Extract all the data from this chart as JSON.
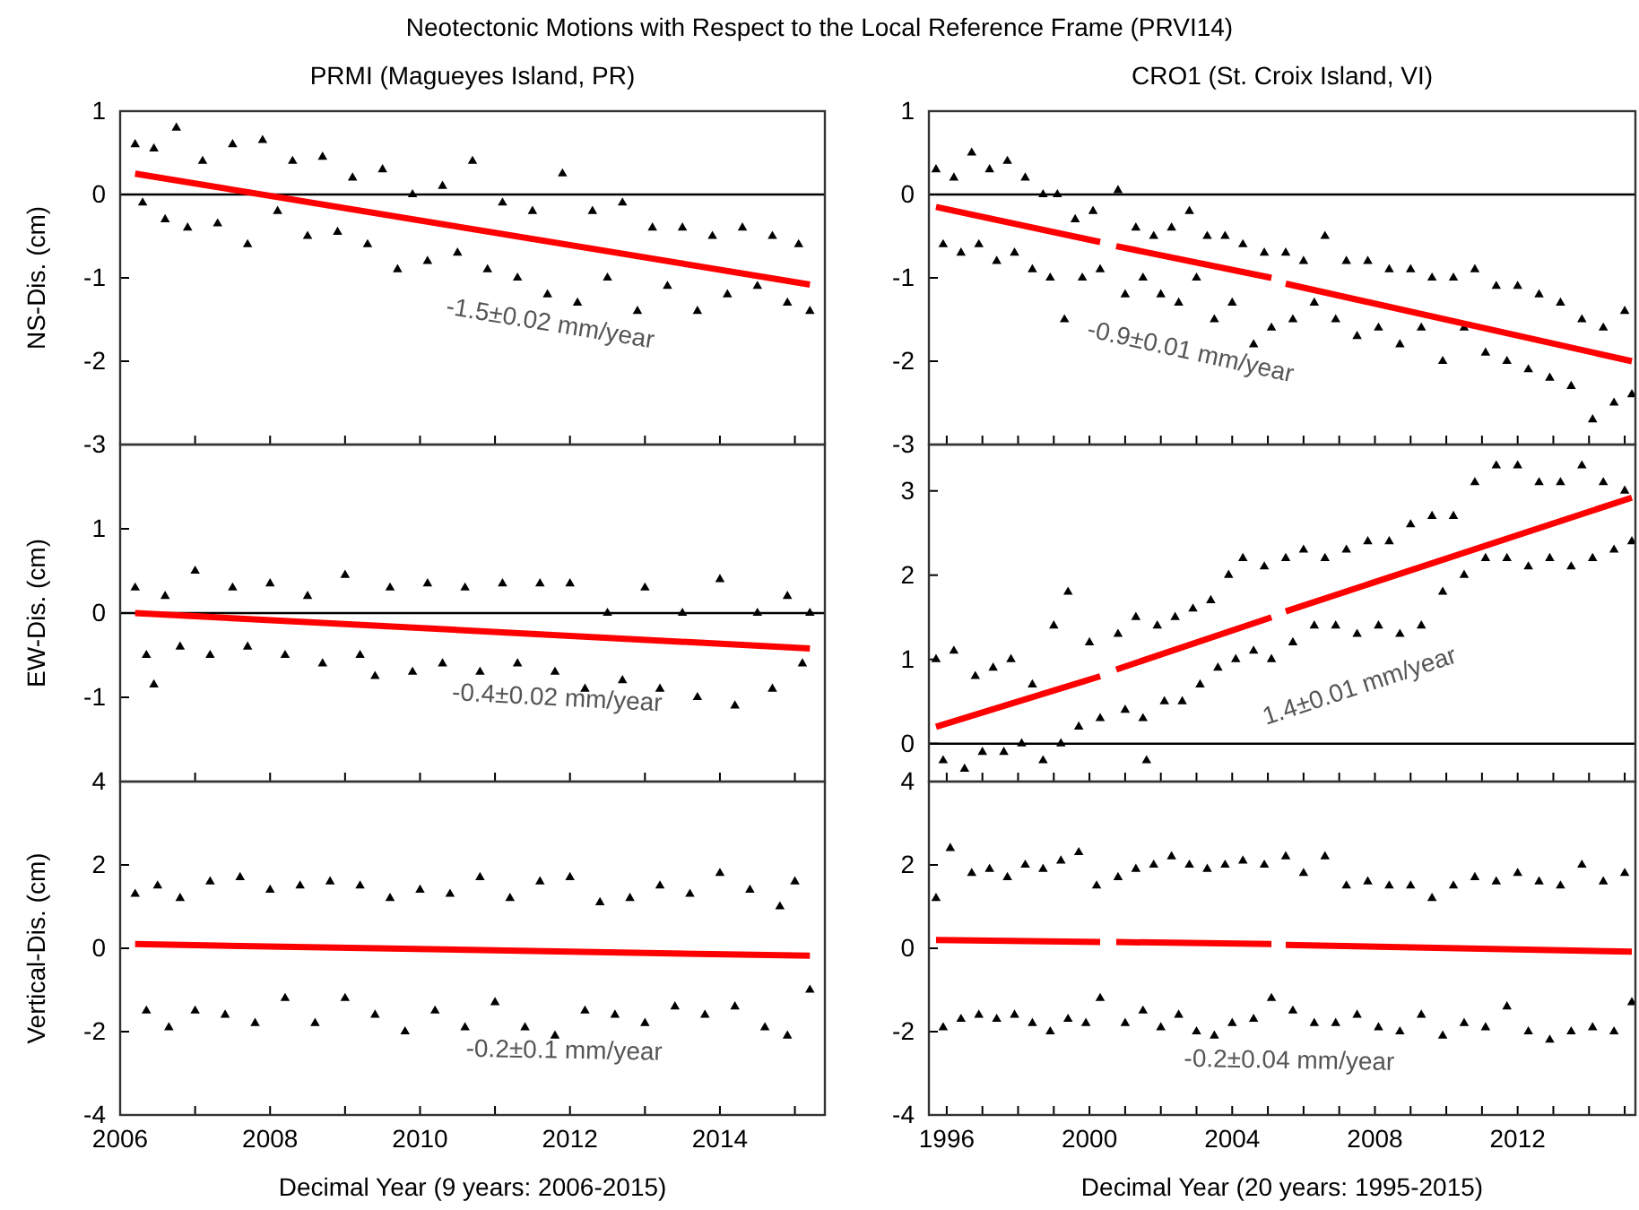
{
  "chart_data": [
    {
      "type": "scatter",
      "title": "Neotectonic Motions with Respect to the Local Reference Frame (PRVI14)",
      "subtitle": "PRMI (Magueyes Island, PR)",
      "ylabel": "NS-Dis. (cm)",
      "xlim": [
        2006,
        2015.4
      ],
      "xticks": [
        2006,
        {
          "value": 2007,
          "label": null
        },
        2008,
        {
          "value": 2009,
          "label": null
        },
        2010,
        {
          "value": 2011,
          "label": null
        },
        2012,
        {
          "value": 2013,
          "label": null
        },
        2014,
        {
          "value": 2015,
          "label": null
        }
      ],
      "ylim": [
        -3,
        1
      ],
      "yticks": [
        -3,
        -2,
        -1,
        0,
        1
      ],
      "tick_labels": "y",
      "marker": "triangle",
      "grid": false,
      "ref_lines": [
        {
          "axis": "y",
          "value": 0,
          "color": "#000000"
        }
      ],
      "annotations": [
        "-1.5±0.02 mm/year"
      ],
      "series": [
        {
          "type": "scatter",
          "color": "#000000",
          "x": [
            2006.2,
            2006.3,
            2006.45,
            2006.6,
            2006.75,
            2006.9,
            2007.1,
            2007.3,
            2007.5,
            2007.7,
            2007.9,
            2008.1,
            2008.3,
            2008.5,
            2008.7,
            2008.9,
            2009.1,
            2009.3,
            2009.5,
            2009.7,
            2009.9,
            2010.1,
            2010.3,
            2010.5,
            2010.7,
            2010.9,
            2011.1,
            2011.3,
            2011.5,
            2011.7,
            2011.9,
            2012.1,
            2012.3,
            2012.5,
            2012.7,
            2012.9,
            2013.1,
            2013.3,
            2013.5,
            2013.7,
            2013.9,
            2014.1,
            2014.3,
            2014.5,
            2014.7,
            2014.9,
            2015.05,
            2015.2
          ],
          "values": [
            0.6,
            -0.1,
            0.55,
            -0.3,
            0.8,
            -0.4,
            0.4,
            -0.35,
            0.6,
            -0.6,
            0.65,
            -0.2,
            0.4,
            -0.5,
            0.45,
            -0.45,
            0.2,
            -0.6,
            0.3,
            -0.9,
            0.0,
            -0.8,
            0.1,
            -0.7,
            0.4,
            -0.9,
            -0.1,
            -1.0,
            -0.2,
            -1.2,
            0.25,
            -1.3,
            -0.2,
            -1.0,
            -0.1,
            -1.4,
            -0.4,
            -1.1,
            -0.4,
            -1.4,
            -0.5,
            -1.2,
            -0.4,
            -1.1,
            -0.5,
            -1.3,
            -0.6,
            -1.4
          ]
        },
        {
          "type": "line",
          "marker": "none",
          "color": "#ff0000",
          "x": [
            2006.2,
            2015.2
          ],
          "values": [
            0.25,
            -1.08
          ]
        }
      ]
    },
    {
      "type": "scatter",
      "subtitle": "CRO1 (St. Croix Island, VI)",
      "xlim": [
        1995.5,
        2015.3
      ],
      "xticks": [
        1996,
        {
          "value": 1997,
          "label": null
        },
        {
          "value": 1998,
          "label": null
        },
        {
          "value": 1999,
          "label": null
        },
        2000,
        {
          "value": 2001,
          "label": null
        },
        {
          "value": 2002,
          "label": null
        },
        {
          "value": 2003,
          "label": null
        },
        2004,
        {
          "value": 2005,
          "label": null
        },
        {
          "value": 2006,
          "label": null
        },
        {
          "value": 2007,
          "label": null
        },
        2008,
        {
          "value": 2009,
          "label": null
        },
        {
          "value": 2010,
          "label": null
        },
        {
          "value": 2011,
          "label": null
        },
        2012,
        {
          "value": 2013,
          "label": null
        },
        {
          "value": 2014,
          "label": null
        },
        {
          "value": 2015,
          "label": null
        }
      ],
      "ylim": [
        -3,
        1
      ],
      "yticks": [
        -3,
        -2,
        -1,
        0,
        1
      ],
      "tick_labels": "y",
      "marker": "triangle",
      "grid": false,
      "ref_lines": [
        {
          "axis": "y",
          "value": 0,
          "color": "#000000"
        }
      ],
      "annotations": [
        "-0.9±0.01 mm/year"
      ],
      "series": [
        {
          "type": "scatter",
          "color": "#000000",
          "x": [
            1995.7,
            1995.9,
            1996.2,
            1996.4,
            1996.7,
            1996.9,
            1997.2,
            1997.4,
            1997.7,
            1997.9,
            1998.2,
            1998.4,
            1998.7,
            1998.9,
            1999.1,
            1999.3,
            1999.6,
            1999.8,
            2000.1,
            2000.3,
            2000.8,
            2001.0,
            2001.3,
            2001.5,
            2001.8,
            2002.0,
            2002.3,
            2002.5,
            2002.8,
            2003.0,
            2003.3,
            2003.5,
            2003.8,
            2004.0,
            2004.3,
            2004.6,
            2004.9,
            2005.1,
            2005.5,
            2005.7,
            2006.0,
            2006.3,
            2006.6,
            2006.9,
            2007.2,
            2007.5,
            2007.8,
            2008.1,
            2008.4,
            2008.7,
            2009.0,
            2009.3,
            2009.6,
            2009.9,
            2010.2,
            2010.5,
            2010.8,
            2011.1,
            2011.4,
            2011.7,
            2012.0,
            2012.3,
            2012.6,
            2012.9,
            2013.2,
            2013.5,
            2013.8,
            2014.1,
            2014.4,
            2014.7,
            2015.0,
            2015.2
          ],
          "values": [
            0.3,
            -0.6,
            0.2,
            -0.7,
            0.5,
            -0.6,
            0.3,
            -0.8,
            0.4,
            -0.7,
            0.2,
            -0.9,
            0.0,
            -1.0,
            0.0,
            -1.5,
            -0.3,
            -1.0,
            -0.2,
            -0.9,
            0.05,
            -1.2,
            -0.4,
            -1.0,
            -0.5,
            -1.2,
            -0.4,
            -1.3,
            -0.2,
            -1.0,
            -0.5,
            -1.5,
            -0.5,
            -1.3,
            -0.6,
            -1.8,
            -0.7,
            -1.6,
            -0.7,
            -1.5,
            -0.8,
            -1.3,
            -0.5,
            -1.5,
            -0.8,
            -1.7,
            -0.8,
            -1.6,
            -0.9,
            -1.8,
            -0.9,
            -1.6,
            -1.0,
            -2.0,
            -1.0,
            -1.6,
            -0.9,
            -1.9,
            -1.1,
            -2.0,
            -1.1,
            -2.1,
            -1.2,
            -2.2,
            -1.3,
            -2.3,
            -1.5,
            -2.7,
            -1.6,
            -2.5,
            -1.4,
            -2.4
          ]
        },
        {
          "type": "line",
          "marker": "none",
          "color": "#ff0000",
          "x": [
            1995.7,
            2000.3,
            2000.5,
            2000.75,
            2005.1,
            2005.3,
            2005.5,
            2015.2
          ],
          "values": [
            -0.15,
            -0.57,
            null,
            -0.62,
            -1.0,
            null,
            -1.07,
            -2.0
          ]
        }
      ]
    },
    {
      "type": "scatter",
      "ylabel": "EW-Dis. (cm)",
      "xlim": [
        2006,
        2015.4
      ],
      "xticks": [
        2006,
        {
          "value": 2007,
          "label": null
        },
        2008,
        {
          "value": 2009,
          "label": null
        },
        2010,
        {
          "value": 2011,
          "label": null
        },
        2012,
        {
          "value": 2013,
          "label": null
        },
        2014,
        {
          "value": 2015,
          "label": null
        }
      ],
      "ylim": [
        -2,
        2
      ],
      "yticks": [
        -1,
        0,
        1
      ],
      "tick_labels": "y",
      "marker": "triangle",
      "grid": false,
      "ref_lines": [
        {
          "axis": "y",
          "value": 0,
          "color": "#000000"
        }
      ],
      "annotations": [
        "-0.4±0.02 mm/year"
      ],
      "series": [
        {
          "type": "scatter",
          "color": "#000000",
          "x": [
            2006.2,
            2006.35,
            2006.45,
            2006.6,
            2006.8,
            2007.0,
            2007.2,
            2007.5,
            2007.7,
            2008.0,
            2008.2,
            2008.5,
            2008.7,
            2009.0,
            2009.2,
            2009.4,
            2009.6,
            2009.9,
            2010.1,
            2010.3,
            2010.6,
            2010.8,
            2011.1,
            2011.3,
            2011.6,
            2011.8,
            2012.0,
            2012.2,
            2012.5,
            2012.7,
            2013.0,
            2013.2,
            2013.5,
            2013.7,
            2014.0,
            2014.2,
            2014.5,
            2014.7,
            2014.9,
            2015.1,
            2015.2
          ],
          "values": [
            0.3,
            -0.5,
            -0.85,
            0.2,
            -0.4,
            0.5,
            -0.5,
            0.3,
            -0.4,
            0.35,
            -0.5,
            0.2,
            -0.6,
            0.45,
            -0.5,
            -0.75,
            0.3,
            -0.7,
            0.35,
            -0.6,
            0.3,
            -0.7,
            0.35,
            -0.6,
            0.35,
            -0.7,
            0.35,
            -0.9,
            0.0,
            -0.8,
            0.3,
            -0.9,
            0.0,
            -1.0,
            0.4,
            -1.1,
            0.0,
            -0.9,
            0.2,
            -0.6,
            0.0
          ]
        },
        {
          "type": "line",
          "marker": "none",
          "color": "#ff0000",
          "x": [
            2006.2,
            2015.2
          ],
          "values": [
            0.0,
            -0.42
          ]
        }
      ]
    },
    {
      "type": "scatter",
      "xlim": [
        1995.5,
        2015.3
      ],
      "xticks": [
        1996,
        {
          "value": 1997,
          "label": null
        },
        {
          "value": 1998,
          "label": null
        },
        {
          "value": 1999,
          "label": null
        },
        2000,
        {
          "value": 2001,
          "label": null
        },
        {
          "value": 2002,
          "label": null
        },
        {
          "value": 2003,
          "label": null
        },
        2004,
        {
          "value": 2005,
          "label": null
        },
        {
          "value": 2006,
          "label": null
        },
        {
          "value": 2007,
          "label": null
        },
        2008,
        {
          "value": 2009,
          "label": null
        },
        {
          "value": 2010,
          "label": null
        },
        {
          "value": 2011,
          "label": null
        },
        2012,
        {
          "value": 2013,
          "label": null
        },
        {
          "value": 2014,
          "label": null
        },
        {
          "value": 2015,
          "label": null
        }
      ],
      "ylim": [
        -0.45,
        3.55
      ],
      "yticks": [
        0,
        1,
        2,
        3
      ],
      "tick_labels": "y",
      "marker": "triangle",
      "grid": false,
      "ref_lines": [
        {
          "axis": "y",
          "value": 0,
          "color": "#000000"
        }
      ],
      "annotations": [
        "1.4±0.01 mm/year"
      ],
      "series": [
        {
          "type": "scatter",
          "color": "#000000",
          "x": [
            1995.7,
            1995.9,
            1996.2,
            1996.5,
            1996.8,
            1997.0,
            1997.3,
            1997.6,
            1997.8,
            1998.1,
            1998.4,
            1998.7,
            1999.0,
            1999.2,
            1999.4,
            1999.7,
            2000.0,
            2000.3,
            2000.8,
            2001.0,
            2001.3,
            2001.5,
            2001.6,
            2001.9,
            2002.1,
            2002.4,
            2002.6,
            2002.9,
            2003.1,
            2003.4,
            2003.6,
            2003.9,
            2004.1,
            2004.3,
            2004.6,
            2004.9,
            2005.1,
            2005.5,
            2005.7,
            2006.0,
            2006.3,
            2006.6,
            2006.9,
            2007.2,
            2007.5,
            2007.8,
            2008.1,
            2008.4,
            2008.7,
            2009.0,
            2009.3,
            2009.6,
            2009.9,
            2010.2,
            2010.5,
            2010.8,
            2011.1,
            2011.4,
            2011.7,
            2012.0,
            2012.3,
            2012.6,
            2012.9,
            2013.2,
            2013.5,
            2013.8,
            2014.1,
            2014.4,
            2014.7,
            2015.0,
            2015.2
          ],
          "values": [
            1.0,
            -0.2,
            1.1,
            -0.3,
            0.8,
            -0.1,
            0.9,
            -0.1,
            1.0,
            0.0,
            0.7,
            -0.2,
            1.4,
            0.0,
            1.8,
            0.2,
            1.2,
            0.3,
            1.3,
            0.4,
            1.5,
            0.3,
            -0.2,
            1.4,
            0.5,
            1.5,
            0.5,
            1.6,
            0.7,
            1.7,
            0.9,
            2.0,
            1.0,
            2.2,
            1.1,
            2.1,
            1.0,
            2.2,
            1.2,
            2.3,
            1.4,
            2.2,
            1.4,
            2.3,
            1.3,
            2.4,
            1.4,
            2.4,
            1.3,
            2.6,
            1.4,
            2.7,
            1.8,
            2.7,
            2.0,
            3.1,
            2.2,
            3.3,
            2.2,
            3.3,
            2.1,
            3.1,
            2.2,
            3.1,
            2.1,
            3.3,
            2.2,
            3.1,
            2.3,
            3.0,
            2.4
          ]
        },
        {
          "type": "line",
          "marker": "none",
          "color": "#ff0000",
          "x": [
            1995.7,
            2000.3,
            2000.5,
            2000.75,
            2005.1,
            2005.3,
            2005.5,
            2015.2
          ],
          "values": [
            0.2,
            0.8,
            null,
            0.88,
            1.5,
            null,
            1.57,
            2.92
          ]
        }
      ]
    },
    {
      "type": "scatter",
      "ylabel": "Vertical-Dis. (cm)",
      "xlabel": "Decimal Year (9 years: 2006-2015)",
      "xlim": [
        2006,
        2015.4
      ],
      "xticks": [
        2006,
        {
          "value": 2007,
          "label": null
        },
        2008,
        {
          "value": 2009,
          "label": null
        },
        2010,
        {
          "value": 2011,
          "label": null
        },
        2012,
        {
          "value": 2013,
          "label": null
        },
        2014,
        {
          "value": 2015,
          "label": null
        }
      ],
      "ylim": [
        -4,
        4
      ],
      "yticks": [
        -4,
        -2,
        0,
        2,
        4
      ],
      "marker": "triangle",
      "grid": false,
      "annotations": [
        "-0.2±0.1 mm/year"
      ],
      "series": [
        {
          "type": "scatter",
          "color": "#000000",
          "x": [
            2006.2,
            2006.35,
            2006.5,
            2006.65,
            2006.8,
            2007.0,
            2007.2,
            2007.4,
            2007.6,
            2007.8,
            2008.0,
            2008.2,
            2008.4,
            2008.6,
            2008.8,
            2009.0,
            2009.2,
            2009.4,
            2009.6,
            2009.8,
            2010.0,
            2010.2,
            2010.4,
            2010.6,
            2010.8,
            2011.0,
            2011.2,
            2011.4,
            2011.6,
            2011.8,
            2012.0,
            2012.2,
            2012.4,
            2012.6,
            2012.8,
            2013.0,
            2013.2,
            2013.4,
            2013.6,
            2013.8,
            2014.0,
            2014.2,
            2014.4,
            2014.6,
            2014.8,
            2014.9,
            2015.0,
            2015.2
          ],
          "values": [
            1.3,
            -1.5,
            1.5,
            -1.9,
            1.2,
            -1.5,
            1.6,
            -1.6,
            1.7,
            -1.8,
            1.4,
            -1.2,
            1.5,
            -1.8,
            1.6,
            -1.2,
            1.5,
            -1.6,
            1.2,
            -2.0,
            1.4,
            -1.5,
            1.3,
            -1.9,
            1.7,
            -1.3,
            1.2,
            -1.9,
            1.6,
            -2.1,
            1.7,
            -1.5,
            1.1,
            -1.6,
            1.2,
            -1.8,
            1.5,
            -1.4,
            1.3,
            -1.6,
            1.8,
            -1.4,
            1.4,
            -1.9,
            1.0,
            -2.1,
            1.6,
            -1.0
          ]
        },
        {
          "type": "line",
          "marker": "none",
          "color": "#ff0000",
          "x": [
            2006.2,
            2015.2
          ],
          "values": [
            0.1,
            -0.18
          ]
        }
      ]
    },
    {
      "type": "scatter",
      "xlabel": "Decimal Year (20 years: 1995-2015)",
      "xlim": [
        1995.5,
        2015.3
      ],
      "xticks": [
        1996,
        {
          "value": 1997,
          "label": null
        },
        {
          "value": 1998,
          "label": null
        },
        {
          "value": 1999,
          "label": null
        },
        2000,
        {
          "value": 2001,
          "label": null
        },
        {
          "value": 2002,
          "label": null
        },
        {
          "value": 2003,
          "label": null
        },
        2004,
        {
          "value": 2005,
          "label": null
        },
        {
          "value": 2006,
          "label": null
        },
        {
          "value": 2007,
          "label": null
        },
        2008,
        {
          "value": 2009,
          "label": null
        },
        {
          "value": 2010,
          "label": null
        },
        {
          "value": 2011,
          "label": null
        },
        2012,
        {
          "value": 2013,
          "label": null
        },
        {
          "value": 2014,
          "label": null
        },
        {
          "value": 2015,
          "label": null
        }
      ],
      "ylim": [
        -4,
        4
      ],
      "yticks": [
        -4,
        -2,
        0,
        2,
        4
      ],
      "marker": "triangle",
      "grid": false,
      "annotations": [
        "-0.2±0.04 mm/year"
      ],
      "series": [
        {
          "type": "scatter",
          "color": "#000000",
          "x": [
            1995.7,
            1995.9,
            1996.1,
            1996.4,
            1996.7,
            1996.9,
            1997.2,
            1997.4,
            1997.7,
            1997.9,
            1998.2,
            1998.4,
            1998.7,
            1998.9,
            1999.2,
            1999.4,
            1999.7,
            1999.9,
            2000.2,
            2000.3,
            2000.8,
            2001.0,
            2001.3,
            2001.5,
            2001.8,
            2002.0,
            2002.3,
            2002.5,
            2002.8,
            2003.0,
            2003.3,
            2003.5,
            2003.8,
            2004.0,
            2004.3,
            2004.6,
            2004.9,
            2005.1,
            2005.5,
            2005.7,
            2006.0,
            2006.3,
            2006.6,
            2006.9,
            2007.2,
            2007.5,
            2007.8,
            2008.1,
            2008.4,
            2008.7,
            2009.0,
            2009.3,
            2009.6,
            2009.9,
            2010.2,
            2010.5,
            2010.8,
            2011.1,
            2011.4,
            2011.7,
            2012.0,
            2012.3,
            2012.6,
            2012.9,
            2013.2,
            2013.5,
            2013.8,
            2014.1,
            2014.4,
            2014.7,
            2015.0,
            2015.2
          ],
          "values": [
            1.2,
            -1.9,
            2.4,
            -1.7,
            1.8,
            -1.6,
            1.9,
            -1.7,
            1.7,
            -1.6,
            2.0,
            -1.8,
            1.9,
            -2.0,
            2.1,
            -1.7,
            2.3,
            -1.8,
            1.5,
            -1.2,
            1.7,
            -1.8,
            1.9,
            -1.5,
            2.0,
            -1.9,
            2.2,
            -1.6,
            2.0,
            -2.0,
            1.9,
            -2.1,
            2.0,
            -1.8,
            2.1,
            -1.7,
            2.0,
            -1.2,
            2.2,
            -1.5,
            1.8,
            -1.8,
            2.2,
            -1.8,
            1.5,
            -1.6,
            1.6,
            -1.9,
            1.5,
            -2.0,
            1.5,
            -1.6,
            1.2,
            -2.1,
            1.5,
            -1.8,
            1.7,
            -1.9,
            1.6,
            -1.4,
            1.8,
            -2.0,
            1.6,
            -2.2,
            1.5,
            -2.0,
            2.0,
            -1.9,
            1.6,
            -2.0,
            1.8,
            -1.3
          ]
        },
        {
          "type": "line",
          "marker": "none",
          "color": "#ff0000",
          "x": [
            1995.7,
            2000.3,
            2000.5,
            2000.75,
            2005.1,
            2005.3,
            2005.5,
            2015.2
          ],
          "values": [
            0.2,
            0.15,
            null,
            0.15,
            0.1,
            null,
            0.08,
            -0.08
          ]
        }
      ]
    }
  ]
}
